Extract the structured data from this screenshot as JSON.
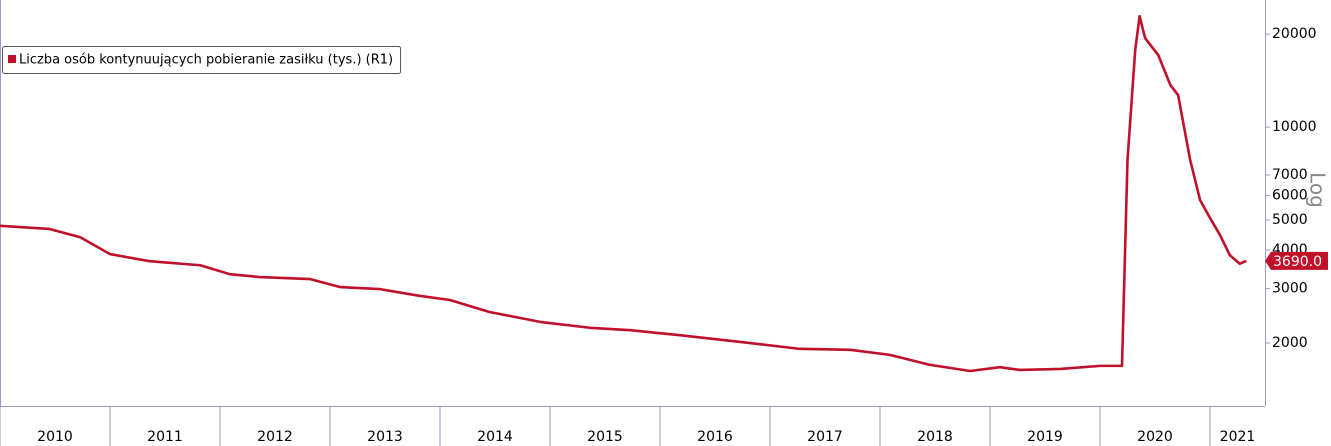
{
  "chart_data": {
    "type": "line",
    "series": [
      {
        "name": "Liczba osób kontynuujących pobieranie zasiłku (tys.) (R1)",
        "color": "#c0102a",
        "x": [
          2010.0,
          2010.45,
          2010.73,
          2011.0,
          2011.36,
          2011.82,
          2012.09,
          2012.36,
          2012.82,
          2013.09,
          2013.45,
          2013.82,
          2014.09,
          2014.45,
          2014.91,
          2015.36,
          2015.73,
          2016.18,
          2016.73,
          2017.27,
          2017.73,
          2018.09,
          2018.45,
          2018.82,
          2019.09,
          2019.27,
          2019.64,
          2020.0,
          2020.2,
          2020.25,
          2020.32,
          2020.36,
          2020.41,
          2020.53,
          2020.64,
          2020.71,
          2020.82,
          2020.91,
          2021.0,
          2021.09,
          2021.18,
          2021.27,
          2021.33
        ],
        "values": [
          4790,
          4680,
          4400,
          3880,
          3680,
          3570,
          3340,
          3270,
          3220,
          3035,
          2990,
          2840,
          2755,
          2520,
          2340,
          2240,
          2200,
          2120,
          2015,
          1914,
          1900,
          1830,
          1700,
          1623,
          1670,
          1636,
          1648,
          1686,
          1686,
          7820,
          17750,
          22870,
          19420,
          17100,
          13680,
          12700,
          7820,
          5800,
          5080,
          4480,
          3850,
          3610,
          3690
        ],
        "last_value_label": "3690.0"
      }
    ],
    "xlim": [
      2010,
      2021.5
    ],
    "xticks": [
      {
        "value": 2010.5,
        "label": "2010"
      },
      {
        "value": 2011.5,
        "label": "2011"
      },
      {
        "value": 2012.5,
        "label": "2012"
      },
      {
        "value": 2013.5,
        "label": "2013"
      },
      {
        "value": 2014.5,
        "label": "2014"
      },
      {
        "value": 2015.5,
        "label": "2015"
      },
      {
        "value": 2016.5,
        "label": "2016"
      },
      {
        "value": 2017.5,
        "label": "2017"
      },
      {
        "value": 2018.5,
        "label": "2018"
      },
      {
        "value": 2019.5,
        "label": "2019"
      },
      {
        "value": 2020.5,
        "label": "2020"
      },
      {
        "value": 2021.25,
        "label": "2021"
      }
    ],
    "ylim": [
      1250,
      25800
    ],
    "yticks": [
      2000,
      3000,
      4000,
      5000,
      6000,
      7000,
      10000,
      20000
    ],
    "log_scale": true,
    "scale_label": "Log",
    "legend": "top-left"
  }
}
